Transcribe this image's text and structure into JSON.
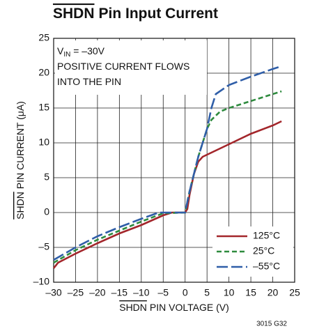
{
  "chart_data": {
    "type": "line",
    "title": {
      "overline": "SHDN",
      "text": "Pin Input Current"
    },
    "x_label": {
      "overline": "SHDN",
      "text": "PIN VOLTAGE (V)"
    },
    "y_label": {
      "overline": "SHDN",
      "text": "PIN CURRENT (μA)"
    },
    "annotation_lines": [
      [
        "V",
        "IN",
        " = –30V"
      ],
      [
        "POSITIVE CURRENT FLOWS"
      ],
      [
        "INTO THE PIN"
      ]
    ],
    "note": "3015 G32",
    "xlim": [
      -30,
      25
    ],
    "xticks": [
      {
        "value": -30,
        "label": "–30"
      },
      {
        "value": -25,
        "label": "–25"
      },
      {
        "value": -20,
        "label": "–20"
      },
      {
        "value": -15,
        "label": "–15"
      },
      {
        "value": -10,
        "label": "–10"
      },
      {
        "value": -5,
        "label": "–5"
      },
      0,
      5,
      10,
      15,
      20,
      25
    ],
    "ylim": [
      -10,
      25
    ],
    "yticks": [
      {
        "value": -10,
        "label": "–10"
      },
      {
        "value": -5,
        "label": "–5"
      },
      0,
      5,
      10,
      15,
      20,
      25
    ],
    "grid": true,
    "legend": "lower right",
    "series": [
      {
        "name": "125°C",
        "color": "#a3262b",
        "dash": "none",
        "x": [
          -30,
          -29,
          -25,
          -20,
          -15,
          -10,
          -5,
          -3,
          0,
          0.5,
          1,
          2,
          3,
          4,
          5,
          10,
          15,
          20,
          22
        ],
        "values": [
          -8,
          -7.2,
          -5.9,
          -4.4,
          -3,
          -1.8,
          -0.4,
          0,
          0,
          0.5,
          2.5,
          5.5,
          7.3,
          8,
          8.3,
          9.8,
          11.3,
          12.5,
          13.1
        ]
      },
      {
        "name": "25°C",
        "color": "#2e8b3e",
        "dash": "7 4",
        "x": [
          -30,
          -25,
          -20,
          -15,
          -10,
          -5,
          0,
          1,
          3,
          4.5,
          5,
          6,
          8,
          10,
          15,
          20,
          22
        ],
        "values": [
          -7.2,
          -5.4,
          -3.9,
          -2.6,
          -1.3,
          -0.1,
          0,
          3,
          8,
          11,
          12,
          13.3,
          14.5,
          15,
          16,
          17,
          17.4
        ]
      },
      {
        "name": "–55°C",
        "color": "#2f5ea8",
        "dash": "16 5",
        "x": [
          -30,
          -25,
          -20,
          -15,
          -10,
          -6,
          0,
          1,
          3,
          5,
          6,
          7,
          10,
          15,
          20,
          22
        ],
        "values": [
          -6.8,
          -5,
          -3.4,
          -2.1,
          -0.9,
          0,
          0,
          3,
          8,
          12,
          15,
          17,
          18.3,
          19.5,
          20.6,
          21
        ]
      }
    ]
  }
}
